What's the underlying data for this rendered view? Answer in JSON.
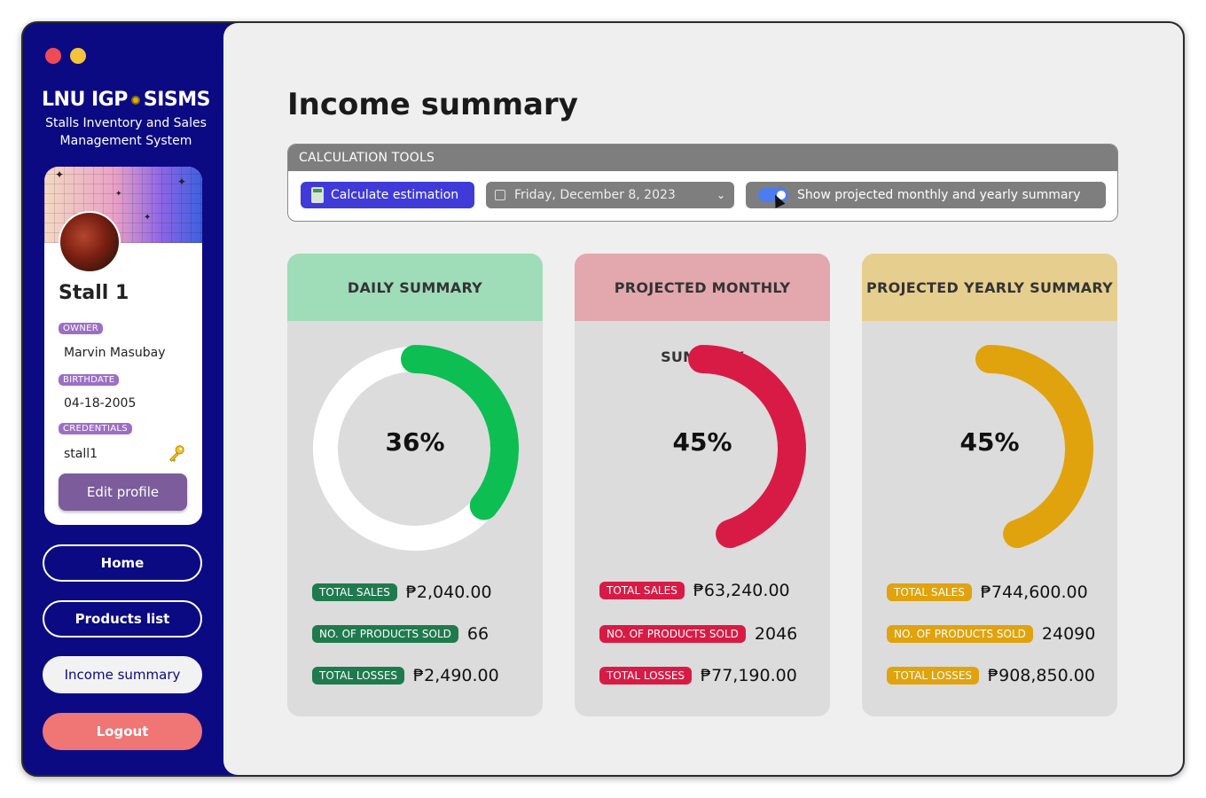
{
  "window": {
    "controls": [
      "close",
      "minimize"
    ]
  },
  "brand": {
    "title_left": "LNU IGP",
    "title_right": "SISMS",
    "subtitle_line1": "Stalls Inventory and Sales",
    "subtitle_line2": "Management System"
  },
  "profile": {
    "stall_name": "Stall 1",
    "owner_label": "OWNER",
    "owner": "Marvin Masubay",
    "birthdate_label": "BIRTHDATE",
    "birthdate": "04-18-2005",
    "credentials_label": "CREDENTIALS",
    "credentials": "stall1",
    "edit_label": "Edit profile"
  },
  "nav": {
    "home": "Home",
    "products": "Products list",
    "income": "Income summary",
    "logout": "Logout"
  },
  "page": {
    "title": "Income summary"
  },
  "tools": {
    "header": "CALCULATION TOOLS",
    "calc_label": "Calculate estimation",
    "date_value": "Friday, December 8, 2023",
    "toggle_label": "Show projected monthly and yearly summary",
    "toggle_on": true
  },
  "cards": [
    {
      "title": "DAILY SUMMARY",
      "percent_label": "36%",
      "percent": 36,
      "head_color": "#9fdcb8",
      "color": "#0dbe52",
      "tag_color": "#1f7a4e",
      "track": true,
      "sales_label": "TOTAL SALES",
      "sales": "₱2,040.00",
      "products_label": "NO. OF PRODUCTS SOLD",
      "products": "66",
      "losses_label": "TOTAL LOSSES",
      "losses": "₱2,490.00"
    },
    {
      "title": "PROJECTED MONTHLY SUMMARY",
      "percent_label": "45%",
      "percent": 45,
      "head_color": "#e3a7ae",
      "color": "#d81b45",
      "tag_color": "#d81b45",
      "track": false,
      "sales_label": "TOTAL SALES",
      "sales": "₱63,240.00",
      "products_label": "NO. OF PRODUCTS SOLD",
      "products": "2046",
      "losses_label": "TOTAL LOSSES",
      "losses": "₱77,190.00"
    },
    {
      "title": "PROJECTED YEARLY SUMMARY",
      "percent_label": "45%",
      "percent": 45,
      "head_color": "#e6cf8e",
      "color": "#e0a30d",
      "tag_color": "#e0a30d",
      "track": false,
      "sales_label": "TOTAL SALES",
      "sales": "₱744,600.00",
      "products_label": "NO. OF PRODUCTS SOLD",
      "products": "24090",
      "losses_label": "TOTAL LOSSES",
      "losses": "₱908,850.00"
    }
  ],
  "colors": {
    "sidebar_bg": "#0c0a82",
    "calc_button": "#3f3ad8",
    "logout": "#f07575",
    "edit_button": "#7c5c9b",
    "tag": "#9c6fc4"
  }
}
